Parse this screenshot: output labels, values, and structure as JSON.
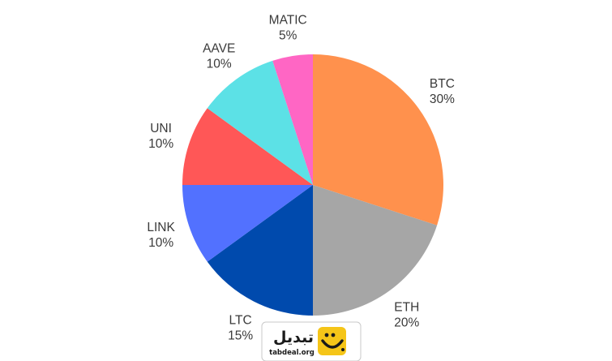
{
  "chart_data": {
    "type": "pie",
    "title": "",
    "start": "top, clockwise",
    "slices": [
      {
        "label": "BTC",
        "value": 30,
        "value_label": "30%",
        "color": "#FF914D"
      },
      {
        "label": "ETH",
        "value": 20,
        "value_label": "20%",
        "color": "#A6A6A6"
      },
      {
        "label": "LTC",
        "value": 15,
        "value_label": "15%",
        "color": "#004AAD"
      },
      {
        "label": "LINK",
        "value": 10,
        "value_label": "10%",
        "color": "#5271FF"
      },
      {
        "label": "UNI",
        "value": 10,
        "value_label": "10%",
        "color": "#FF5757"
      },
      {
        "label": "AAVE",
        "value": 10,
        "value_label": "10%",
        "color": "#5CE1E6"
      },
      {
        "label": "MATIC",
        "value": 5,
        "value_label": "5%",
        "color": "#FF66C4"
      }
    ]
  },
  "watermark": {
    "name": "تبدیل",
    "url": "tabdeal.org",
    "logo_icon": "smile-logo-icon",
    "logo_color": "#F5C518"
  }
}
